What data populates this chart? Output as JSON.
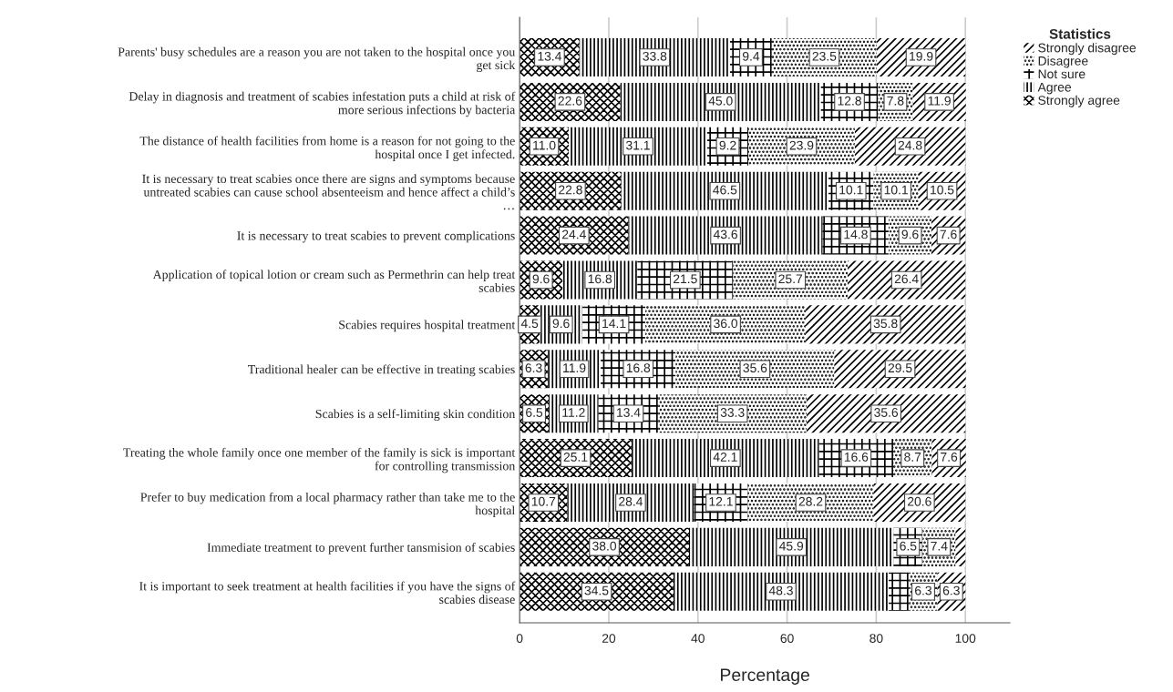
{
  "chart_data": {
    "type": "bar",
    "orientation": "horizontal",
    "stacked": true,
    "xlabel": "Percentage",
    "legend_title": "Statistics",
    "legend": "top right",
    "xlim": [
      0,
      110
    ],
    "xticks": [
      0,
      20,
      40,
      60,
      80,
      100
    ],
    "grid": "x",
    "categories": [
      "Parents' busy schedules are a reason you are not taken to the hospital once you\nget sick",
      "Delay in diagnosis and treatment of scabies infestation puts a child at risk of\nmore serious infections by bacteria",
      "The distance of health facilities from home is a reason for not going to the\nhospital once I get infected.",
      "It is necessary to treat scabies once there are signs and symptoms because\nuntreated scabies can cause school absenteeism and hence affect a child’s\n…",
      "It is necessary to treat scabies to prevent complications",
      "Application of topical lotion or cream such as Permethrin can help treat\nscabies",
      "Scabies requires hospital treatment",
      "Traditional healer can be effective in treating scabies",
      "Scabies is a self-limiting skin condition",
      "Treating the whole family once one member of the family is sick is important\nfor controlling transmission",
      "Prefer to buy medication from a local pharmacy rather than take me to the\nhospital",
      "Immediate treatment to prevent further tansmision of scabies",
      "It is important to seek treatment at health facilities if you have the signs of\nscabies disease"
    ],
    "series": [
      {
        "name": "Strongly agree",
        "color": "#000000",
        "values": [
          13.4,
          22.6,
          11.0,
          22.8,
          24.4,
          9.6,
          4.5,
          6.3,
          6.5,
          25.1,
          10.7,
          38.0,
          34.5
        ],
        "value_labels": [
          "13.4",
          "22.6",
          "11.0",
          "22.8",
          "24.4",
          "9.6",
          "4.5",
          "6.3",
          "6.5",
          "25.1",
          "10.7",
          "38.0",
          "34.5"
        ]
      },
      {
        "name": "Agree",
        "color": "#000000",
        "values": [
          33.8,
          45.0,
          31.1,
          46.5,
          43.6,
          16.8,
          9.6,
          11.9,
          11.2,
          42.1,
          28.4,
          45.9,
          48.3
        ],
        "value_labels": [
          "33.8",
          "45.0",
          "31.1",
          "46.5",
          "43.6",
          "16.8",
          "9.6",
          "11.9",
          "11.2",
          "42.1",
          "28.4",
          "45.9",
          "48.3"
        ]
      },
      {
        "name": "Not sure",
        "color": "#000000",
        "values": [
          9.4,
          12.8,
          9.2,
          10.1,
          14.8,
          21.5,
          14.1,
          16.8,
          13.4,
          16.6,
          12.1,
          6.5,
          4.6
        ],
        "value_labels": [
          "9.4",
          "12.8",
          "9.2",
          "10.1",
          "14.8",
          "21.5",
          "14.1",
          "16.8",
          "13.4",
          "16.6",
          "12.1",
          "6.5",
          null
        ]
      },
      {
        "name": "Disagree",
        "color": "#000000",
        "values": [
          23.5,
          7.8,
          23.9,
          10.1,
          9.6,
          25.7,
          36.0,
          35.6,
          33.3,
          8.7,
          28.2,
          7.4,
          6.3
        ],
        "value_labels": [
          "23.5",
          "7.8",
          "23.9",
          "10.1",
          "9.6",
          "25.7",
          "36.0",
          "35.6",
          "33.3",
          "8.7",
          "28.2",
          "7.4",
          "6.3"
        ]
      },
      {
        "name": "Strongly disagree",
        "color": "#000000",
        "values": [
          19.9,
          11.9,
          24.8,
          10.5,
          7.6,
          26.4,
          35.8,
          29.5,
          35.6,
          7.6,
          20.6,
          2.2,
          6.3
        ],
        "value_labels": [
          "19.9",
          "11.9",
          "24.8",
          "10.5",
          "7.6",
          "26.4",
          "35.8",
          "29.5",
          "35.6",
          "7.6",
          "20.6",
          null,
          "6.3"
        ]
      }
    ]
  }
}
